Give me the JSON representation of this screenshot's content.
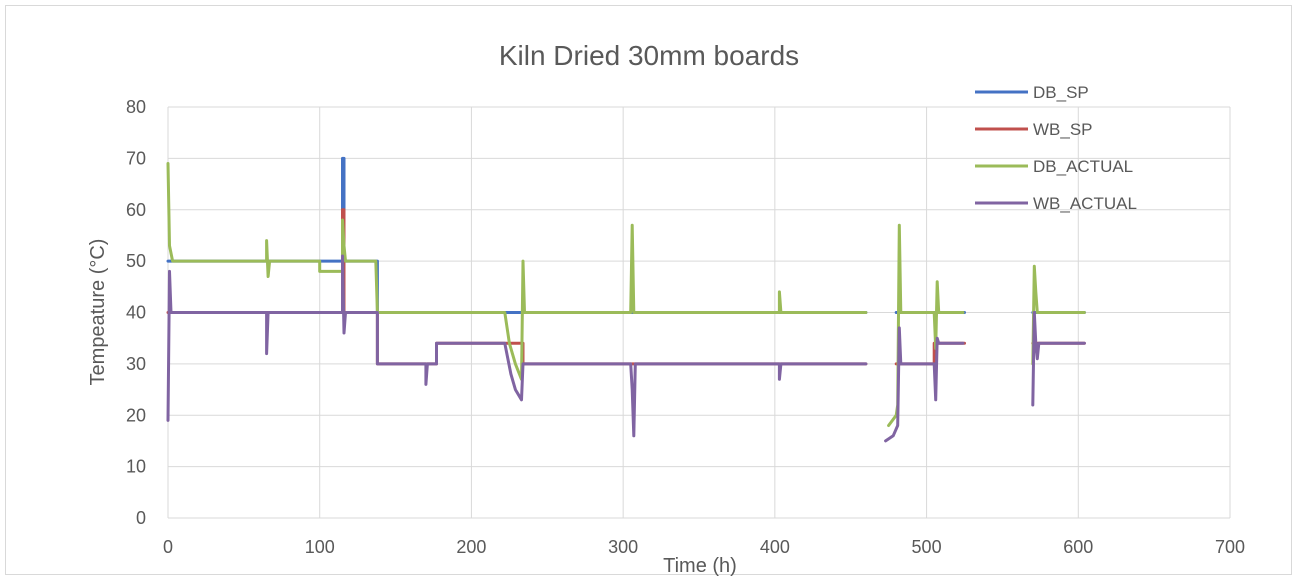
{
  "chart_data": {
    "type": "line",
    "title": "Kiln Dried 30mm boards",
    "xlabel": "Time (h)",
    "ylabel": "Tempeature (°C)",
    "xlim": [
      0,
      700
    ],
    "ylim": [
      0,
      80
    ],
    "xticks": [
      "0",
      "100",
      "200",
      "300",
      "400",
      "500",
      "600",
      "700"
    ],
    "yticks": [
      "0",
      "10",
      "20",
      "30",
      "40",
      "50",
      "60",
      "70",
      "80"
    ],
    "grid": true,
    "legend_position": "top-right",
    "series": [
      {
        "name": "DB_SP",
        "color": "#4472C4",
        "segments": [
          [
            [
              0,
              50
            ],
            [
              115,
              50
            ],
            [
              115,
              70
            ],
            [
              116,
              70
            ],
            [
              116,
              50
            ],
            [
              138,
              50
            ],
            [
              138,
              40
            ],
            [
              228,
              40
            ],
            [
              234,
              40
            ],
            [
              234,
              40
            ],
            [
              460,
              40
            ]
          ],
          [
            [
              480,
              40
            ],
            [
              525,
              40
            ]
          ],
          [
            [
              570,
              40
            ],
            [
              604,
              40
            ]
          ]
        ]
      },
      {
        "name": "WB_SP",
        "color": "#C0504D",
        "segments": [
          [
            [
              0,
              40
            ],
            [
              115,
              40
            ],
            [
              115,
              60
            ],
            [
              116,
              60
            ],
            [
              116,
              40
            ],
            [
              138,
              40
            ],
            [
              138,
              30
            ],
            [
              177,
              30
            ],
            [
              177,
              34
            ],
            [
              221,
              34
            ],
            [
              234,
              34
            ],
            [
              234,
              30
            ],
            [
              460,
              30
            ]
          ],
          [
            [
              480,
              30
            ],
            [
              505,
              30
            ],
            [
              505,
              34
            ],
            [
              525,
              34
            ]
          ],
          [
            [
              570,
              34
            ],
            [
              604,
              34
            ]
          ]
        ]
      },
      {
        "name": "DB_ACTUAL",
        "color": "#9BBB59",
        "segments": [
          [
            [
              0,
              69
            ],
            [
              1,
              53
            ],
            [
              3,
              50
            ],
            [
              30,
              50
            ],
            [
              65,
              50
            ],
            [
              65,
              54
            ],
            [
              66,
              47
            ],
            [
              67,
              50
            ],
            [
              100,
              50
            ],
            [
              100,
              48
            ],
            [
              115,
              48
            ],
            [
              115,
              58
            ],
            [
              116,
              53
            ],
            [
              117,
              50
            ],
            [
              137,
              50
            ],
            [
              138,
              40
            ],
            [
              178,
              40
            ],
            [
              222,
              40
            ],
            [
              225,
              34
            ],
            [
              229,
              30
            ],
            [
              233,
              27
            ],
            [
              234,
              50
            ],
            [
              235,
              40
            ],
            [
              305,
              40
            ],
            [
              306,
              57
            ],
            [
              307,
              40
            ],
            [
              403,
              40
            ],
            [
              403,
              44
            ],
            [
              404,
              40
            ],
            [
              460,
              40
            ]
          ],
          [
            [
              475,
              18
            ],
            [
              480,
              20
            ],
            [
              481,
              22
            ],
            [
              482,
              57
            ],
            [
              483,
              40
            ],
            [
              505,
              40
            ],
            [
              506,
              33
            ],
            [
              507,
              46
            ],
            [
              508,
              40
            ],
            [
              524,
              40
            ]
          ],
          [
            [
              570,
              30
            ],
            [
              571,
              49
            ],
            [
              572,
              44
            ],
            [
              573,
              40
            ],
            [
              604,
              40
            ]
          ]
        ]
      },
      {
        "name": "WB_ACTUAL",
        "color": "#8064A2",
        "segments": [
          [
            [
              0,
              19
            ],
            [
              1,
              48
            ],
            [
              2,
              40
            ],
            [
              65,
              40
            ],
            [
              65,
              32
            ],
            [
              66,
              40
            ],
            [
              100,
              40
            ],
            [
              115,
              40
            ],
            [
              115,
              51
            ],
            [
              116,
              36
            ],
            [
              117,
              40
            ],
            [
              138,
              40
            ],
            [
              138,
              30
            ],
            [
              170,
              30
            ],
            [
              170,
              26
            ],
            [
              171,
              30
            ],
            [
              177,
              30
            ],
            [
              177,
              34
            ],
            [
              222,
              34
            ],
            [
              226,
              28
            ],
            [
              229,
              25
            ],
            [
              233,
              23
            ],
            [
              234,
              30
            ],
            [
              305,
              30
            ],
            [
              306,
              25
            ],
            [
              307,
              16
            ],
            [
              308,
              30
            ],
            [
              403,
              30
            ],
            [
              403,
              27
            ],
            [
              404,
              30
            ],
            [
              460,
              30
            ]
          ],
          [
            [
              473,
              15
            ],
            [
              478,
              16
            ],
            [
              481,
              18
            ],
            [
              482,
              37
            ],
            [
              483,
              30
            ],
            [
              505,
              30
            ],
            [
              506,
              23
            ],
            [
              507,
              35
            ],
            [
              508,
              34
            ],
            [
              524,
              34
            ]
          ],
          [
            [
              570,
              22
            ],
            [
              571,
              40
            ],
            [
              572,
              34
            ],
            [
              573,
              31
            ],
            [
              574,
              34
            ],
            [
              604,
              34
            ]
          ]
        ]
      }
    ]
  }
}
